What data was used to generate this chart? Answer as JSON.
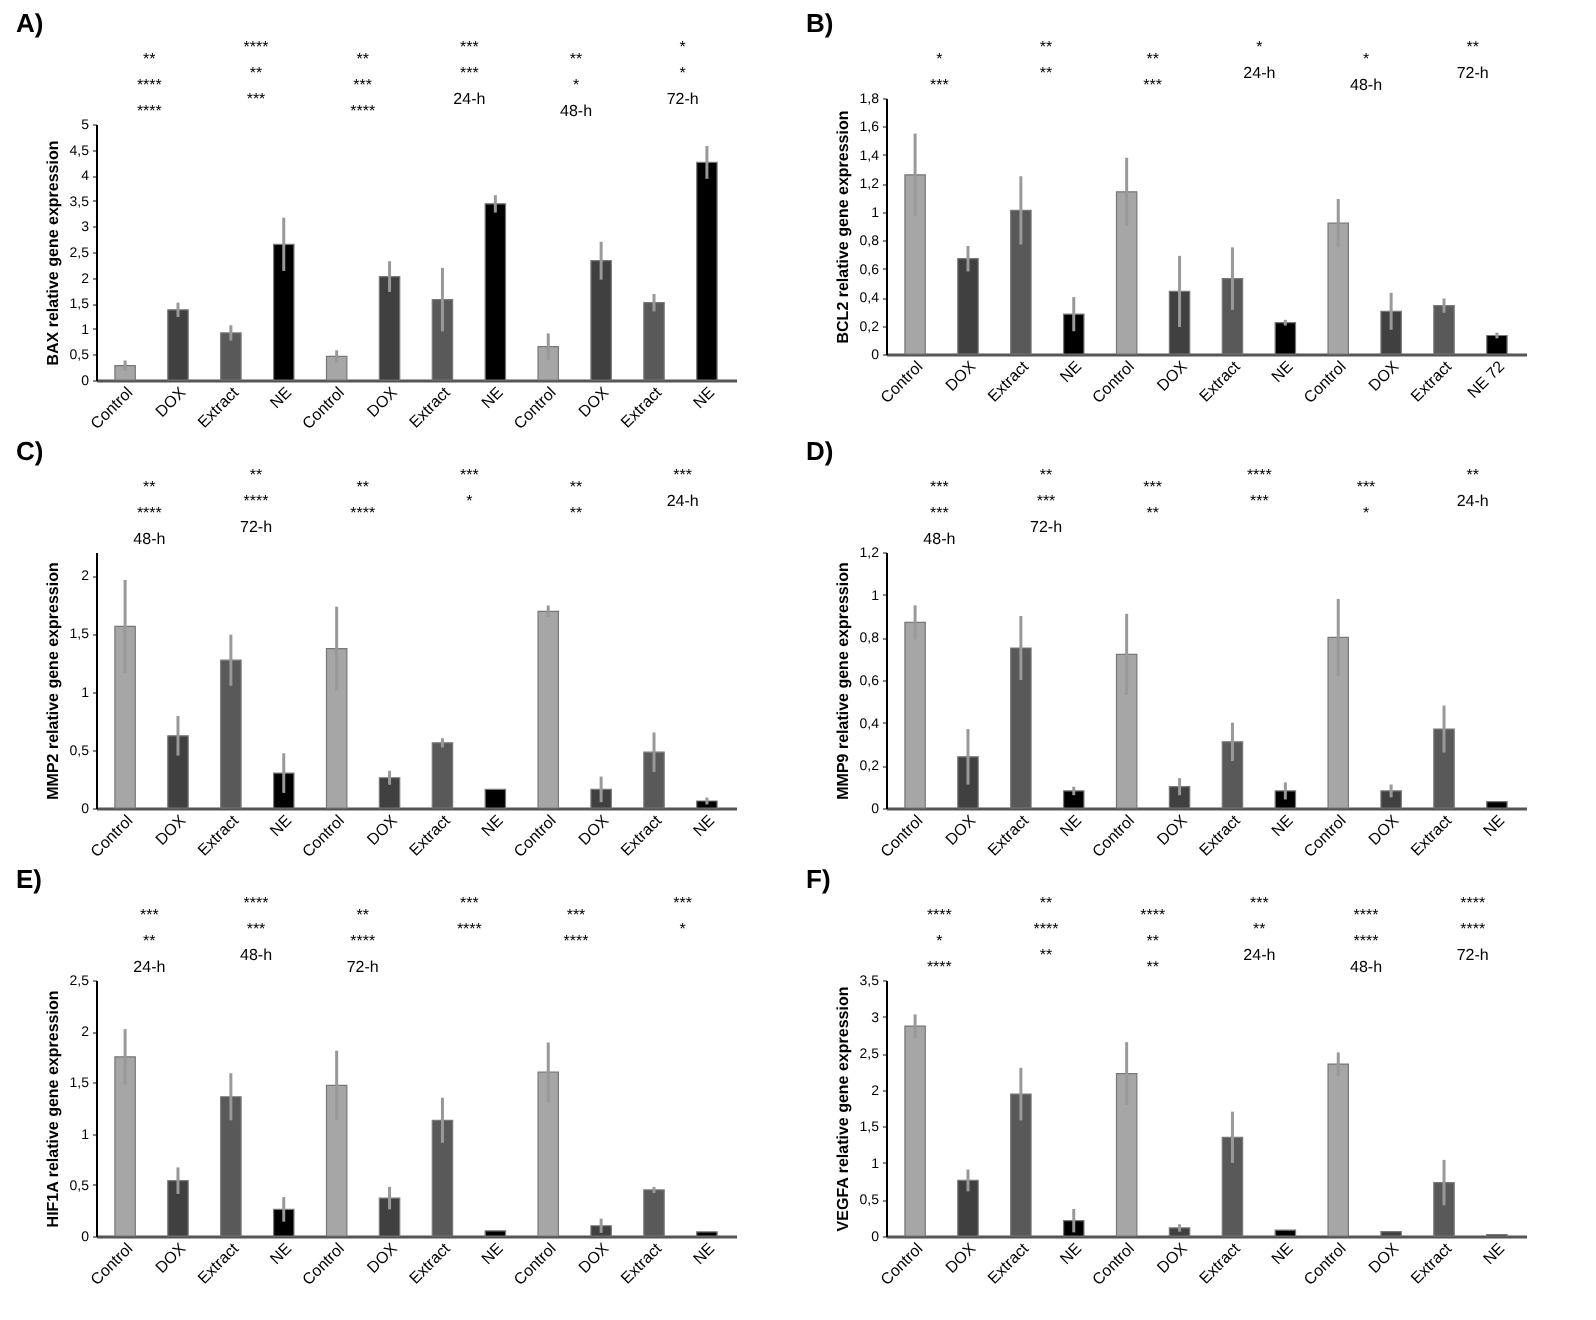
{
  "chart_data": [
    {
      "type": "bar",
      "title": "A)",
      "ylabel": "BAX relative gene expression",
      "categories": [
        "Control",
        "DOX",
        "Extract",
        "NE",
        "Control",
        "DOX",
        "Extract",
        "NE",
        "Control",
        "DOX",
        "Extract",
        "NE"
      ],
      "values": [
        0.28,
        1.37,
        0.92,
        2.65,
        0.46,
        2.02,
        1.57,
        3.44,
        0.65,
        2.33,
        1.51,
        4.25
      ],
      "errors": [
        0.1,
        0.14,
        0.15,
        0.52,
        0.12,
        0.3,
        0.62,
        0.17,
        0.26,
        0.37,
        0.17,
        0.32
      ],
      "colors": [
        "#a6a6a6",
        "#404040",
        "#595959",
        "#000000",
        "#a6a6a6",
        "#404040",
        "#595959",
        "#000000",
        "#a6a6a6",
        "#404040",
        "#595959",
        "#000000"
      ],
      "ylim": [
        0,
        5
      ],
      "yticks": [
        0,
        {
          "value": 0.5,
          "label": "0,5"
        },
        1,
        {
          "value": 1.5,
          "label": "1,5"
        },
        2,
        {
          "value": 2.5,
          "label": "2,5"
        },
        3,
        {
          "value": 3.5,
          "label": "3,5"
        },
        4,
        {
          "value": 4.5,
          "label": "4,5"
        },
        5
      ],
      "annotations": [
        "**",
        "****",
        "**",
        "***",
        "**",
        "*",
        "****",
        "**",
        "***",
        "***",
        "*",
        "*",
        "****",
        "***",
        "****",
        "24-h",
        "48-h",
        "72-h"
      ]
    },
    {
      "type": "bar",
      "title": "B)",
      "ylabel": "BCL2 relative gene expression",
      "categories": [
        "Control",
        "DOX",
        "Extract",
        "NE",
        "Control",
        "DOX",
        "Extract",
        "NE",
        "Control",
        "DOX",
        "Extract",
        "NE 72"
      ],
      "values": [
        1.26,
        0.67,
        1.01,
        0.28,
        1.14,
        0.44,
        0.53,
        0.22,
        0.92,
        0.3,
        0.34,
        0.13
      ],
      "errors": [
        0.29,
        0.09,
        0.24,
        0.12,
        0.24,
        0.25,
        0.22,
        0.02,
        0.17,
        0.13,
        0.05,
        0.02
      ],
      "colors": [
        "#a6a6a6",
        "#404040",
        "#595959",
        "#000000",
        "#a6a6a6",
        "#404040",
        "#595959",
        "#000000",
        "#a6a6a6",
        "#404040",
        "#595959",
        "#000000"
      ],
      "ylim": [
        0,
        1.8
      ],
      "yticks": [
        0,
        {
          "value": 0.2,
          "label": "0,2"
        },
        {
          "value": 0.4,
          "label": "0,4"
        },
        {
          "value": 0.6,
          "label": "0,6"
        },
        {
          "value": 0.8,
          "label": "0,8"
        },
        1,
        {
          "value": 1.2,
          "label": "1,2"
        },
        {
          "value": 1.4,
          "label": "1,4"
        },
        {
          "value": 1.6,
          "label": "1,6"
        },
        {
          "value": 1.8,
          "label": "1,8"
        }
      ],
      "annotations": [
        "*",
        "**",
        "**",
        "*",
        "*",
        "**",
        "***",
        "**",
        "***",
        "24-h",
        "48-h",
        "72-h"
      ]
    },
    {
      "type": "bar",
      "title": "C)",
      "ylabel": "MMP2 relative gene expression",
      "categories": [
        "Control",
        "DOX",
        "Extract",
        "NE",
        "Control",
        "DOX",
        "Extract",
        "NE",
        "Control",
        "DOX",
        "Extract",
        "NE"
      ],
      "values": [
        1.56,
        0.62,
        1.27,
        0.3,
        1.37,
        0.26,
        0.56,
        0.16,
        1.69,
        0.16,
        0.48,
        0.06
      ],
      "errors": [
        0.4,
        0.17,
        0.22,
        0.17,
        0.36,
        0.06,
        0.04,
        null,
        0.05,
        0.11,
        0.17,
        0.03
      ],
      "colors": [
        "#a6a6a6",
        "#404040",
        "#595959",
        "#000000",
        "#a6a6a6",
        "#404040",
        "#595959",
        "#000000",
        "#a6a6a6",
        "#404040",
        "#595959",
        "#000000"
      ],
      "ylim": [
        0,
        2.2
      ],
      "yticks": [
        0,
        {
          "value": 0.5,
          "label": "0,5"
        },
        1,
        {
          "value": 1.5,
          "label": "1,5"
        },
        2
      ],
      "annotations": [
        "**",
        "**",
        "**",
        "***",
        "**",
        "***",
        "****",
        "****",
        "****",
        "*",
        "**",
        "24-h",
        "48-h",
        "72-h"
      ]
    },
    {
      "type": "bar",
      "title": "D)",
      "ylabel": "MMP9 relative gene expression",
      "categories": [
        "Control",
        "DOX",
        "Extract",
        "NE",
        "Control",
        "DOX",
        "Extract",
        "NE",
        "Control",
        "DOX",
        "Extract",
        "NE"
      ],
      "values": [
        0.87,
        0.24,
        0.75,
        0.08,
        0.72,
        0.1,
        0.31,
        0.08,
        0.8,
        0.08,
        0.37,
        0.03
      ],
      "errors": [
        0.08,
        0.13,
        0.15,
        0.02,
        0.19,
        0.04,
        0.09,
        0.04,
        0.18,
        0.03,
        0.11,
        null
      ],
      "colors": [
        "#a6a6a6",
        "#404040",
        "#595959",
        "#000000",
        "#a6a6a6",
        "#404040",
        "#595959",
        "#000000",
        "#a6a6a6",
        "#404040",
        "#595959",
        "#000000"
      ],
      "ylim": [
        0,
        1.2
      ],
      "yticks": [
        0,
        {
          "value": 0.2,
          "label": "0,2"
        },
        {
          "value": 0.4,
          "label": "0,4"
        },
        {
          "value": 0.6,
          "label": "0,6"
        },
        {
          "value": 0.8,
          "label": "0,8"
        },
        1,
        {
          "value": 1.2,
          "label": "1,2"
        }
      ],
      "annotations": [
        "***",
        "**",
        "***",
        "****",
        "***",
        "**",
        "***",
        "***",
        "**",
        "***",
        "*",
        "24-h",
        "48-h",
        "72-h"
      ]
    },
    {
      "type": "bar",
      "title": "E)",
      "ylabel": "HIF1A relative gene expression",
      "categories": [
        "Control",
        "DOX",
        "Extract",
        "NE",
        "Control",
        "DOX",
        "Extract",
        "NE",
        "Control",
        "DOX",
        "Extract",
        "NE"
      ],
      "values": [
        1.75,
        0.54,
        1.36,
        0.26,
        1.47,
        0.37,
        1.13,
        0.05,
        1.6,
        0.1,
        0.45,
        0.04
      ],
      "errors": [
        0.27,
        0.13,
        0.23,
        0.12,
        0.34,
        0.11,
        0.22,
        null,
        0.29,
        0.07,
        0.03,
        null
      ],
      "colors": [
        "#a6a6a6",
        "#404040",
        "#595959",
        "#000000",
        "#a6a6a6",
        "#404040",
        "#595959",
        "#000000",
        "#a6a6a6",
        "#404040",
        "#595959",
        "#000000"
      ],
      "ylim": [
        0,
        2.5
      ],
      "yticks": [
        0,
        {
          "value": 0.5,
          "label": "0,5"
        },
        1,
        {
          "value": 1.5,
          "label": "1,5"
        },
        2,
        {
          "value": 2.5,
          "label": "2,5"
        }
      ],
      "annotations": [
        "***",
        "****",
        "**",
        "***",
        "***",
        "***",
        "**",
        "***",
        "****",
        "****",
        "****",
        "*",
        "24-h",
        "48-h",
        "72-h"
      ]
    },
    {
      "type": "bar",
      "title": "F)",
      "ylabel": "VEGFA relative gene expression",
      "categories": [
        "Control",
        "DOX",
        "Extract",
        "NE",
        "Control",
        "DOX",
        "Extract",
        "NE",
        "Control",
        "DOX",
        "Extract",
        "NE"
      ],
      "values": [
        2.87,
        0.76,
        1.94,
        0.21,
        2.22,
        0.11,
        1.35,
        0.08,
        2.35,
        0.06,
        0.73,
        0.02
      ],
      "errors": [
        0.16,
        0.15,
        0.36,
        0.16,
        0.43,
        0.05,
        0.35,
        null,
        0.16,
        null,
        0.31,
        null
      ],
      "colors": [
        "#a6a6a6",
        "#404040",
        "#595959",
        "#000000",
        "#a6a6a6",
        "#404040",
        "#595959",
        "#000000",
        "#a6a6a6",
        "#404040",
        "#595959",
        "#000000"
      ],
      "ylim": [
        0,
        3.5
      ],
      "yticks": [
        0,
        {
          "value": 0.5,
          "label": "0,5"
        },
        1,
        {
          "value": 1.5,
          "label": "1,5"
        },
        2,
        {
          "value": 2.5,
          "label": "2,5"
        },
        3,
        {
          "value": 3.5,
          "label": "3,5"
        }
      ],
      "annotations": [
        "****",
        "**",
        "****",
        "***",
        "****",
        "****",
        "*",
        "****",
        "**",
        "**",
        "****",
        "****",
        "****",
        "**",
        "**",
        "24-h",
        "48-h",
        "72-h"
      ]
    }
  ]
}
